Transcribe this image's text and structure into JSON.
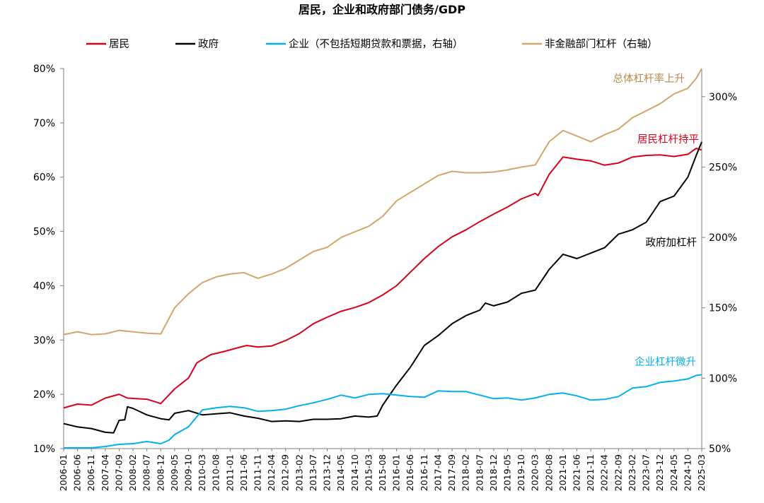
{
  "chart_data": {
    "type": "line",
    "title": "居民，企业和政府部门债务/GDP",
    "xlabel": "",
    "ylabel": "",
    "y_left": {
      "ylim": [
        10,
        80
      ],
      "ticks": [
        "10%",
        "20%",
        "30%",
        "40%",
        "50%",
        "60%",
        "70%",
        "80%"
      ]
    },
    "y_right": {
      "ylim": [
        50,
        320
      ],
      "ticks": [
        "50%",
        "100%",
        "150%",
        "200%",
        "250%",
        "300%"
      ]
    },
    "grid": false,
    "legend_position": "top",
    "x_ticks": [
      "2006-01",
      "2006-06",
      "2006-11",
      "2007-04",
      "2007-09",
      "2008-02",
      "2008-07",
      "2008-12",
      "2009-05",
      "2009-10",
      "2010-03",
      "2010-08",
      "2011-01",
      "2011-06",
      "2011-11",
      "2012-04",
      "2012-09",
      "2013-02",
      "2013-07",
      "2013-12",
      "2014-05",
      "2014-10",
      "2015-03",
      "2015-08",
      "2016-01",
      "2016-06",
      "2016-11",
      "2017-04",
      "2017-09",
      "2018-02",
      "2018-07",
      "2018-12",
      "2019-05",
      "2019-10",
      "2020-03",
      "2020-08",
      "2021-01",
      "2021-06",
      "2021-11",
      "2022-04",
      "2022-09",
      "2023-02",
      "2023-07",
      "2023-12",
      "2024-05",
      "2024-10",
      "2025-03"
    ],
    "series": [
      {
        "name": "居民",
        "axis": "left",
        "color": "#d9001b",
        "points": [
          [
            "2006-01",
            17.5
          ],
          [
            "2006-06",
            18.2
          ],
          [
            "2006-11",
            18.0
          ],
          [
            "2007-04",
            19.3
          ],
          [
            "2007-09",
            20.0
          ],
          [
            "2007-12",
            19.3
          ],
          [
            "2008-07",
            19.1
          ],
          [
            "2008-12",
            18.3
          ],
          [
            "2009-05",
            21.0
          ],
          [
            "2009-10",
            23.0
          ],
          [
            "2010-01",
            25.8
          ],
          [
            "2010-06",
            27.3
          ],
          [
            "2010-11",
            27.9
          ],
          [
            "2011-04",
            28.6
          ],
          [
            "2011-07",
            29.0
          ],
          [
            "2011-11",
            28.7
          ],
          [
            "2012-04",
            28.9
          ],
          [
            "2012-09",
            29.9
          ],
          [
            "2013-02",
            31.2
          ],
          [
            "2013-07",
            33.0
          ],
          [
            "2013-12",
            34.2
          ],
          [
            "2014-05",
            35.3
          ],
          [
            "2014-10",
            36.0
          ],
          [
            "2015-03",
            36.9
          ],
          [
            "2015-08",
            38.3
          ],
          [
            "2016-01",
            40.0
          ],
          [
            "2016-06",
            42.5
          ],
          [
            "2016-11",
            45.0
          ],
          [
            "2017-04",
            47.2
          ],
          [
            "2017-09",
            49.0
          ],
          [
            "2018-02",
            50.3
          ],
          [
            "2018-07",
            51.8
          ],
          [
            "2018-12",
            53.2
          ],
          [
            "2019-05",
            54.5
          ],
          [
            "2019-10",
            56.0
          ],
          [
            "2020-03",
            57.0
          ],
          [
            "2020-04",
            56.6
          ],
          [
            "2020-08",
            60.5
          ],
          [
            "2021-01",
            63.7
          ],
          [
            "2021-06",
            63.3
          ],
          [
            "2021-11",
            63.0
          ],
          [
            "2022-04",
            62.2
          ],
          [
            "2022-09",
            62.6
          ],
          [
            "2023-02",
            63.7
          ],
          [
            "2023-07",
            64.0
          ],
          [
            "2023-12",
            64.1
          ],
          [
            "2024-05",
            63.8
          ],
          [
            "2024-10",
            64.2
          ],
          [
            "2025-01",
            65.3
          ],
          [
            "2025-03",
            65.0
          ]
        ]
      },
      {
        "name": "政府",
        "axis": "left",
        "color": "#000000",
        "points": [
          [
            "2006-01",
            14.6
          ],
          [
            "2006-06",
            14.0
          ],
          [
            "2006-11",
            13.7
          ],
          [
            "2007-04",
            13.0
          ],
          [
            "2007-07",
            12.9
          ],
          [
            "2007-09",
            15.2
          ],
          [
            "2007-11",
            15.3
          ],
          [
            "2007-12",
            17.7
          ],
          [
            "2008-02",
            17.4
          ],
          [
            "2008-07",
            16.2
          ],
          [
            "2008-12",
            15.5
          ],
          [
            "2009-03",
            15.3
          ],
          [
            "2009-05",
            16.5
          ],
          [
            "2009-10",
            17.0
          ],
          [
            "2010-03",
            16.2
          ],
          [
            "2010-08",
            16.4
          ],
          [
            "2011-01",
            16.6
          ],
          [
            "2011-06",
            16.0
          ],
          [
            "2011-11",
            15.6
          ],
          [
            "2012-04",
            15.0
          ],
          [
            "2012-09",
            15.1
          ],
          [
            "2013-02",
            15.0
          ],
          [
            "2013-07",
            15.4
          ],
          [
            "2013-12",
            15.4
          ],
          [
            "2014-05",
            15.5
          ],
          [
            "2014-10",
            16.0
          ],
          [
            "2015-03",
            15.8
          ],
          [
            "2015-06",
            16.0
          ],
          [
            "2015-08",
            18.0
          ],
          [
            "2016-01",
            21.7
          ],
          [
            "2016-06",
            25.0
          ],
          [
            "2016-11",
            29.0
          ],
          [
            "2017-04",
            30.8
          ],
          [
            "2017-09",
            33.0
          ],
          [
            "2018-02",
            34.5
          ],
          [
            "2018-07",
            35.5
          ],
          [
            "2018-09",
            36.8
          ],
          [
            "2018-12",
            36.3
          ],
          [
            "2019-05",
            37.0
          ],
          [
            "2019-10",
            38.6
          ],
          [
            "2020-03",
            39.2
          ],
          [
            "2020-08",
            43.0
          ],
          [
            "2021-01",
            45.8
          ],
          [
            "2021-06",
            45.0
          ],
          [
            "2021-11",
            46.0
          ],
          [
            "2022-04",
            47.0
          ],
          [
            "2022-09",
            49.5
          ],
          [
            "2023-02",
            50.3
          ],
          [
            "2023-07",
            51.7
          ],
          [
            "2023-12",
            55.5
          ],
          [
            "2024-05",
            56.5
          ],
          [
            "2024-10",
            60.0
          ],
          [
            "2025-01",
            64.0
          ],
          [
            "2025-03",
            66.5
          ]
        ]
      },
      {
        "name": "企业（不包括短期贷款和票据，右轴）",
        "axis": "right",
        "color": "#00b0f0",
        "points": [
          [
            "2006-01",
            50.5
          ],
          [
            "2006-11",
            50.5
          ],
          [
            "2007-04",
            51.5
          ],
          [
            "2007-09",
            53.0
          ],
          [
            "2008-02",
            53.5
          ],
          [
            "2008-07",
            55.0
          ],
          [
            "2008-12",
            53.5
          ],
          [
            "2009-03",
            56.0
          ],
          [
            "2009-05",
            60.0
          ],
          [
            "2009-10",
            65.5
          ],
          [
            "2010-03",
            77.5
          ],
          [
            "2010-08",
            79.0
          ],
          [
            "2011-01",
            80.0
          ],
          [
            "2011-06",
            79.0
          ],
          [
            "2011-11",
            76.5
          ],
          [
            "2012-04",
            77.0
          ],
          [
            "2012-09",
            78.0
          ],
          [
            "2013-02",
            80.5
          ],
          [
            "2013-07",
            82.5
          ],
          [
            "2013-12",
            85.0
          ],
          [
            "2014-05",
            88.0
          ],
          [
            "2014-10",
            86.0
          ],
          [
            "2015-03",
            88.5
          ],
          [
            "2015-08",
            89.0
          ],
          [
            "2016-01",
            88.0
          ],
          [
            "2016-06",
            87.0
          ],
          [
            "2016-11",
            86.5
          ],
          [
            "2017-04",
            91.0
          ],
          [
            "2017-09",
            90.5
          ],
          [
            "2018-02",
            90.5
          ],
          [
            "2018-07",
            88.0
          ],
          [
            "2018-12",
            85.5
          ],
          [
            "2019-05",
            86.0
          ],
          [
            "2019-10",
            84.5
          ],
          [
            "2020-03",
            86.0
          ],
          [
            "2020-08",
            88.5
          ],
          [
            "2021-01",
            89.5
          ],
          [
            "2021-06",
            87.5
          ],
          [
            "2021-11",
            84.5
          ],
          [
            "2022-04",
            85.0
          ],
          [
            "2022-09",
            87.0
          ],
          [
            "2023-02",
            93.0
          ],
          [
            "2023-07",
            94.0
          ],
          [
            "2023-12",
            97.0
          ],
          [
            "2024-05",
            98.0
          ],
          [
            "2024-10",
            99.5
          ],
          [
            "2025-01",
            102.0
          ],
          [
            "2025-03",
            102.5
          ]
        ]
      },
      {
        "name": "非金融部门杠杆（右轴）",
        "axis": "right",
        "color": "#d2a66a",
        "points": [
          [
            "2006-01",
            131.0
          ],
          [
            "2006-06",
            133.0
          ],
          [
            "2006-11",
            131.0
          ],
          [
            "2007-04",
            131.5
          ],
          [
            "2007-09",
            134.0
          ],
          [
            "2008-02",
            133.0
          ],
          [
            "2008-07",
            132.0
          ],
          [
            "2008-12",
            131.5
          ],
          [
            "2009-05",
            150.0
          ],
          [
            "2009-10",
            160.0
          ],
          [
            "2010-03",
            168.0
          ],
          [
            "2010-08",
            172.0
          ],
          [
            "2011-01",
            174.0
          ],
          [
            "2011-06",
            175.0
          ],
          [
            "2011-11",
            171.0
          ],
          [
            "2012-04",
            174.0
          ],
          [
            "2012-09",
            178.0
          ],
          [
            "2013-02",
            184.0
          ],
          [
            "2013-07",
            190.0
          ],
          [
            "2013-12",
            193.0
          ],
          [
            "2014-05",
            200.0
          ],
          [
            "2014-10",
            204.0
          ],
          [
            "2015-03",
            208.0
          ],
          [
            "2015-08",
            215.0
          ],
          [
            "2016-01",
            226.0
          ],
          [
            "2016-06",
            232.0
          ],
          [
            "2016-11",
            238.0
          ],
          [
            "2017-04",
            244.0
          ],
          [
            "2017-09",
            247.0
          ],
          [
            "2018-02",
            246.0
          ],
          [
            "2018-07",
            246.0
          ],
          [
            "2018-12",
            246.5
          ],
          [
            "2019-05",
            248.0
          ],
          [
            "2019-10",
            250.0
          ],
          [
            "2020-03",
            251.5
          ],
          [
            "2020-08",
            268.0
          ],
          [
            "2021-01",
            276.0
          ],
          [
            "2021-06",
            272.0
          ],
          [
            "2021-11",
            268.0
          ],
          [
            "2022-04",
            273.0
          ],
          [
            "2022-09",
            277.0
          ],
          [
            "2023-02",
            285.0
          ],
          [
            "2023-07",
            290.0
          ],
          [
            "2023-12",
            295.0
          ],
          [
            "2024-05",
            302.0
          ],
          [
            "2024-10",
            306.0
          ],
          [
            "2025-01",
            313.0
          ],
          [
            "2025-03",
            320.0
          ]
        ]
      }
    ],
    "annotations": [
      {
        "text": "总体杠杆率上升",
        "color": "#b5894e",
        "anchor": [
          "2023-12",
          292
        ]
      },
      {
        "text": "居民杠杆持平",
        "color": "#d9001b",
        "anchor": [
          "2024-01",
          66.5
        ]
      },
      {
        "text": "政府加杠杆",
        "color": "#000000",
        "anchor": [
          "2023-09",
          48.5
        ]
      },
      {
        "text": "企业杠杆微升",
        "color": "#00b0f0",
        "anchor": [
          "2024-01",
          24.5
        ]
      }
    ]
  }
}
